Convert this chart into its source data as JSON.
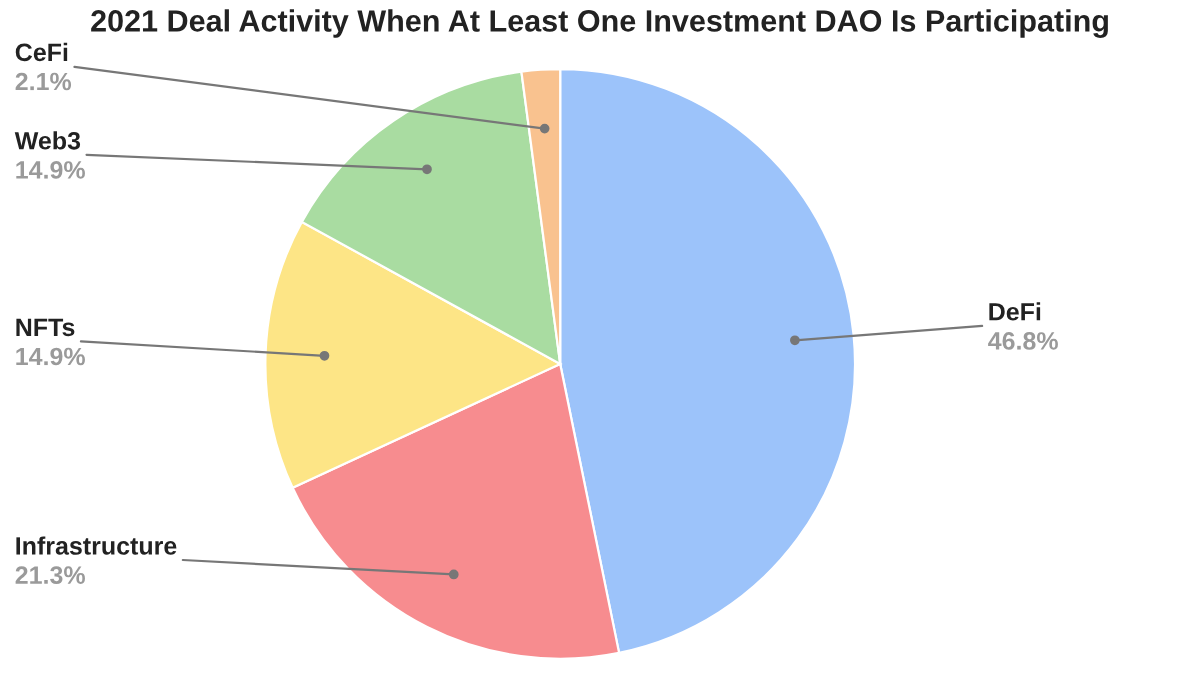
{
  "chart_data": {
    "type": "pie",
    "title": "2021 Deal Activity When At Least One Investment DAO Is Participating",
    "categories": [
      "DeFi",
      "Infrastructure",
      "NFTs",
      "Web3",
      "CeFi"
    ],
    "values": [
      46.8,
      21.3,
      14.9,
      14.9,
      2.1
    ],
    "value_labels": [
      "46.8%",
      "21.3%",
      "14.9%",
      "14.9%",
      "2.1%"
    ],
    "colors": [
      "#9cc3fa",
      "#f78c8f",
      "#fde586",
      "#a9dca1",
      "#f9c28f"
    ],
    "legend": false
  }
}
